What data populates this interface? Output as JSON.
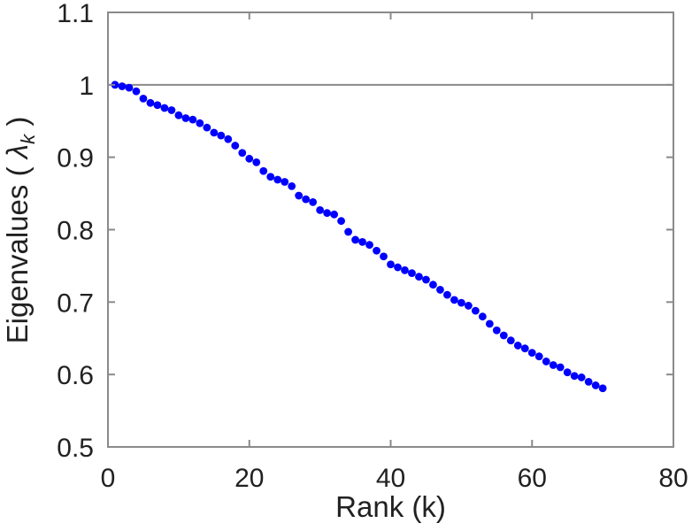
{
  "figure": {
    "background": "#ffffff",
    "axis_color": "#8a8a8a",
    "tick_text_color": "#212121",
    "label_text_color": "#212121"
  },
  "chart_data": {
    "type": "scatter",
    "title": "",
    "xlabel": "Rank (k)",
    "ylabel": {
      "prefix": "Eigenvalues ( ",
      "symbol": "λ",
      "subscript": "k",
      "suffix": " )"
    },
    "xlim": [
      0,
      80
    ],
    "ylim": [
      0.5,
      1.1
    ],
    "xticks": {
      "values": [
        0,
        20,
        40,
        60,
        80
      ],
      "labels": [
        "0",
        "20",
        "40",
        "60",
        "80"
      ]
    },
    "yticks": {
      "values": [
        0.5,
        0.6,
        0.7,
        0.8,
        0.9,
        1.0,
        1.1
      ],
      "labels": [
        "0.5",
        "0.6",
        "0.7",
        "0.8",
        "0.9",
        "1",
        "1.1"
      ]
    },
    "grid": false,
    "legend": "none",
    "box": true,
    "tick_direction": "in",
    "reference_line": {
      "y": 1.0,
      "color": "#8a8a8a"
    },
    "marker": {
      "shape": "filled-circle",
      "color": "#0000ff",
      "radius_px": 4.4
    },
    "series": [
      {
        "name": "eigenvalues",
        "x": [
          1,
          2,
          3,
          4,
          5,
          6,
          7,
          8,
          9,
          10,
          11,
          12,
          13,
          14,
          15,
          16,
          17,
          18,
          19,
          20,
          21,
          22,
          23,
          24,
          25,
          26,
          27,
          28,
          29,
          30,
          31,
          32,
          33,
          34,
          35,
          36,
          37,
          38,
          39,
          40,
          41,
          42,
          43,
          44,
          45,
          46,
          47,
          48,
          49,
          50,
          51,
          52,
          53,
          54,
          55,
          56,
          57,
          58,
          59,
          60,
          61,
          62,
          63,
          64,
          65,
          66,
          67,
          68,
          69,
          70
        ],
        "y": [
          1.0,
          0.998,
          0.996,
          0.991,
          0.981,
          0.975,
          0.972,
          0.968,
          0.965,
          0.958,
          0.954,
          0.952,
          0.947,
          0.941,
          0.934,
          0.93,
          0.925,
          0.916,
          0.906,
          0.898,
          0.893,
          0.881,
          0.873,
          0.869,
          0.866,
          0.86,
          0.847,
          0.842,
          0.838,
          0.827,
          0.823,
          0.821,
          0.812,
          0.797,
          0.786,
          0.783,
          0.779,
          0.771,
          0.763,
          0.752,
          0.748,
          0.744,
          0.74,
          0.735,
          0.731,
          0.724,
          0.717,
          0.71,
          0.703,
          0.699,
          0.695,
          0.688,
          0.68,
          0.67,
          0.661,
          0.654,
          0.647,
          0.64,
          0.636,
          0.63,
          0.625,
          0.618,
          0.613,
          0.61,
          0.603,
          0.598,
          0.596,
          0.59,
          0.585,
          0.581
        ]
      }
    ]
  }
}
